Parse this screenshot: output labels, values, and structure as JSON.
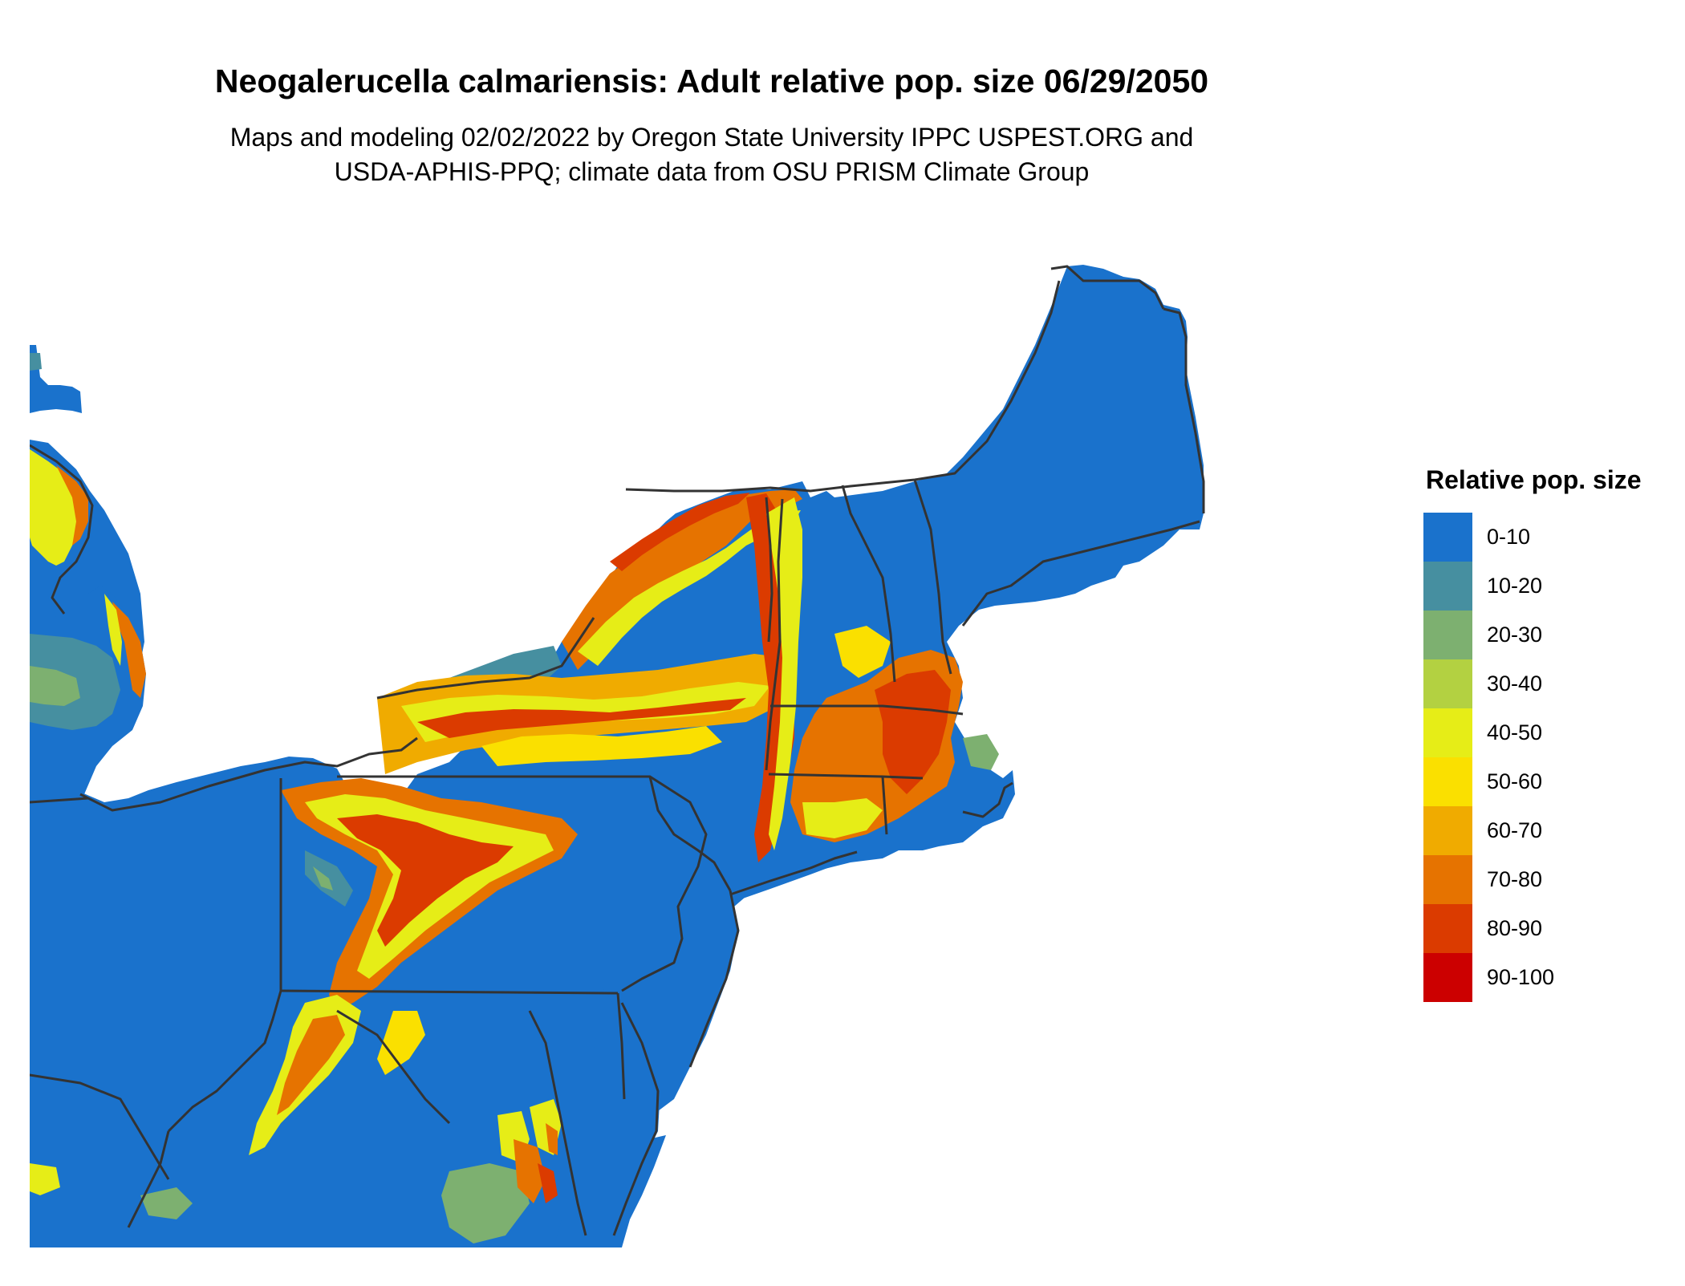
{
  "title": "Neogalerucella calmariensis: Adult relative pop. size 06/29/2050",
  "subtitle_lines": [
    "Maps and modeling 02/02/2022 by Oregon State University IPPC USPEST.ORG and",
    "USDA-APHIS-PPQ; climate data from OSU PRISM Climate Group"
  ],
  "legend": {
    "title": "Relative pop. size",
    "items": [
      {
        "label": "0-10",
        "color": "#1a72cc"
      },
      {
        "label": "10-20",
        "color": "#468fa0"
      },
      {
        "label": "20-30",
        "color": "#7db070"
      },
      {
        "label": "30-40",
        "color": "#b3d141"
      },
      {
        "label": "40-50",
        "color": "#e6ed17"
      },
      {
        "label": "50-60",
        "color": "#fae000"
      },
      {
        "label": "60-70",
        "color": "#f0ab00"
      },
      {
        "label": "70-80",
        "color": "#e67300"
      },
      {
        "label": "80-90",
        "color": "#db3b00"
      },
      {
        "label": "90-100",
        "color": "#cc0000"
      }
    ]
  },
  "colors": {
    "background": "#ffffff",
    "boundary": "#333333"
  }
}
